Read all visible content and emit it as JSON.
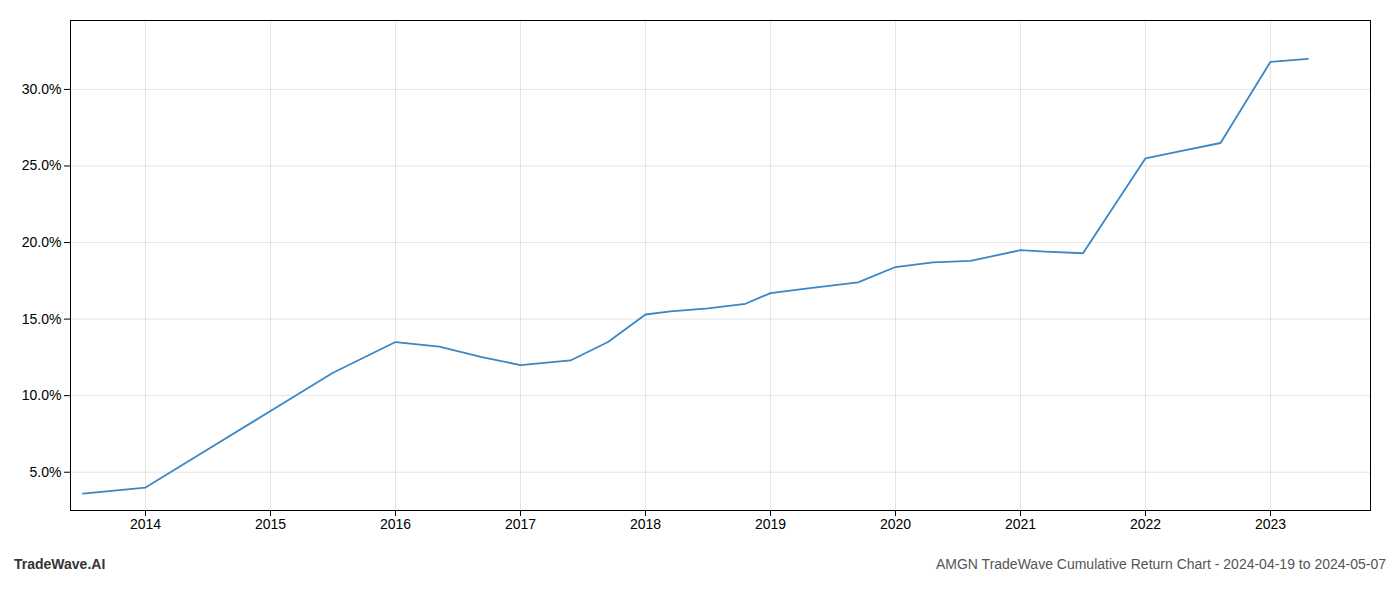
{
  "chart_data": {
    "type": "line",
    "title": "AMGN TradeWave Cumulative Return Chart - 2024-04-19 to 2024-05-07",
    "annotations": [
      "TradeWave.AI"
    ],
    "x": [
      2013.5,
      2014.0,
      2014.5,
      2015.0,
      2015.5,
      2016.0,
      2016.35,
      2016.7,
      2017.0,
      2017.4,
      2017.7,
      2018.0,
      2018.2,
      2018.5,
      2018.8,
      2019.0,
      2019.3,
      2019.7,
      2020.0,
      2020.3,
      2020.6,
      2021.0,
      2021.2,
      2021.5,
      2022.0,
      2022.3,
      2022.6,
      2023.0,
      2023.3
    ],
    "values": [
      3.6,
      4.0,
      6.5,
      9.0,
      11.5,
      13.5,
      13.2,
      12.5,
      12.0,
      12.3,
      13.5,
      15.3,
      15.5,
      15.7,
      16.0,
      16.7,
      17.0,
      17.4,
      18.4,
      18.7,
      18.8,
      19.5,
      19.4,
      19.3,
      25.5,
      26.0,
      26.5,
      31.8,
      32.0
    ],
    "color": "#3a87c8",
    "xlim": [
      2013.4,
      2023.8
    ],
    "xticks": [
      2014,
      2015,
      2016,
      2017,
      2018,
      2019,
      2020,
      2021,
      2022,
      2023
    ],
    "ylim": [
      2.5,
      34.5
    ],
    "yticks": [
      {
        "value": 5.0,
        "label": "5.0%"
      },
      {
        "value": 10.0,
        "label": "10.0%"
      },
      {
        "value": 15.0,
        "label": "15.0%"
      },
      {
        "value": 20.0,
        "label": "20.0%"
      },
      {
        "value": 25.0,
        "label": "25.0%"
      },
      {
        "value": 30.0,
        "label": "30.0%"
      }
    ],
    "grid": true
  }
}
